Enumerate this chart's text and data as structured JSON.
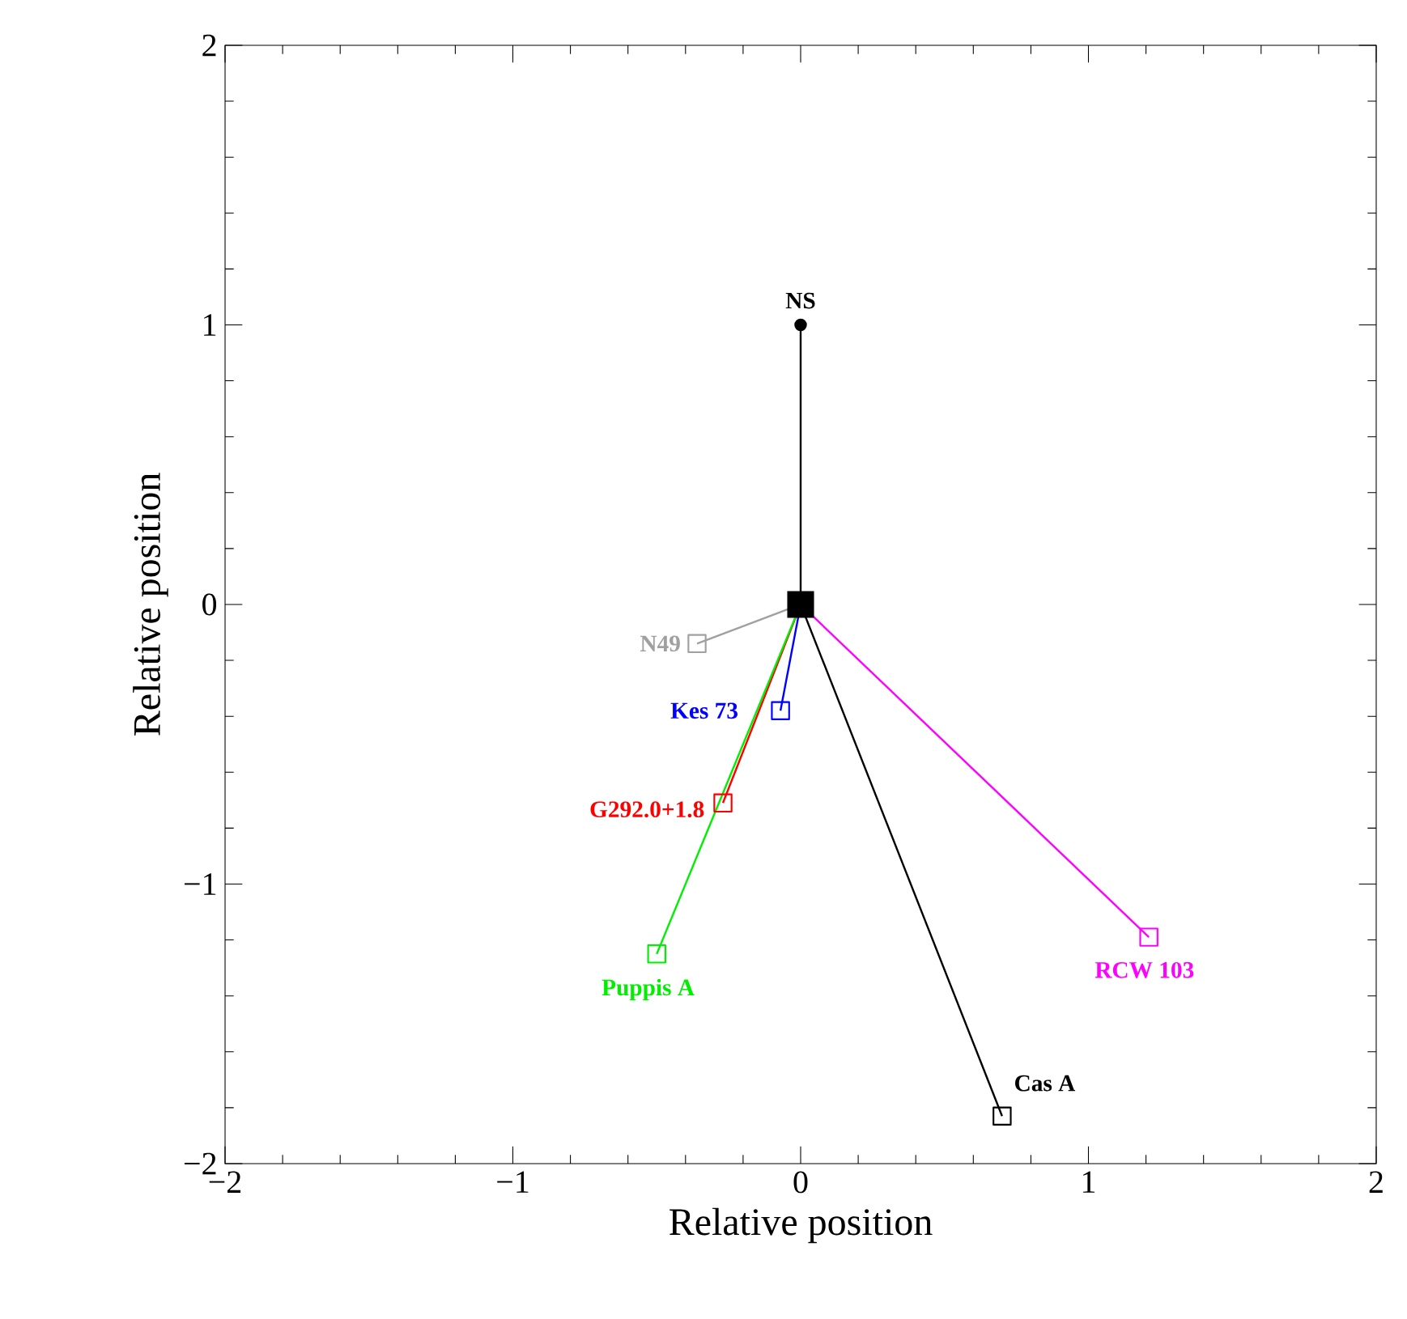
{
  "chart_data": {
    "type": "line",
    "xlabel": "Relative position",
    "ylabel": "Relative position",
    "xlim": [
      -2,
      2
    ],
    "ylim": [
      -2,
      2
    ],
    "xticks": [
      {
        "value": -2,
        "label": "−2"
      },
      {
        "value": -1,
        "label": "−1"
      },
      0,
      1,
      2
    ],
    "yticks": [
      {
        "value": -2,
        "label": "−2"
      },
      {
        "value": -1,
        "label": "−1"
      },
      0,
      1,
      2
    ],
    "marker": "square",
    "series": [
      {
        "name": "NS",
        "x": [
          0,
          0
        ],
        "values": [
          0,
          1
        ],
        "color": "#000000",
        "marker": "circle"
      },
      {
        "name": "N49",
        "x": [
          0,
          -0.36
        ],
        "values": [
          0,
          -0.14
        ],
        "color": "#a0a0a0"
      },
      {
        "name": "Kes 73",
        "x": [
          0,
          -0.07
        ],
        "values": [
          0,
          -0.38
        ],
        "color": "#0000ff"
      },
      {
        "name": "G292.0+1.8",
        "x": [
          0,
          -0.27
        ],
        "values": [
          0,
          -0.71
        ],
        "color": "#ff0000"
      },
      {
        "name": "Puppis A",
        "x": [
          0,
          -0.5
        ],
        "values": [
          0,
          -1.25
        ],
        "color": "#00ee00"
      },
      {
        "name": "RCW 103",
        "x": [
          0,
          1.21
        ],
        "values": [
          0,
          -1.19
        ],
        "color": "#ff00ff"
      },
      {
        "name": "Cas A",
        "x": [
          0,
          0.7
        ],
        "values": [
          0,
          -1.83
        ],
        "color": "#000000"
      },
      {
        "type": "scatter",
        "x": [
          0
        ],
        "values": [
          0
        ],
        "color": "#000000",
        "marker": "square"
      }
    ]
  }
}
